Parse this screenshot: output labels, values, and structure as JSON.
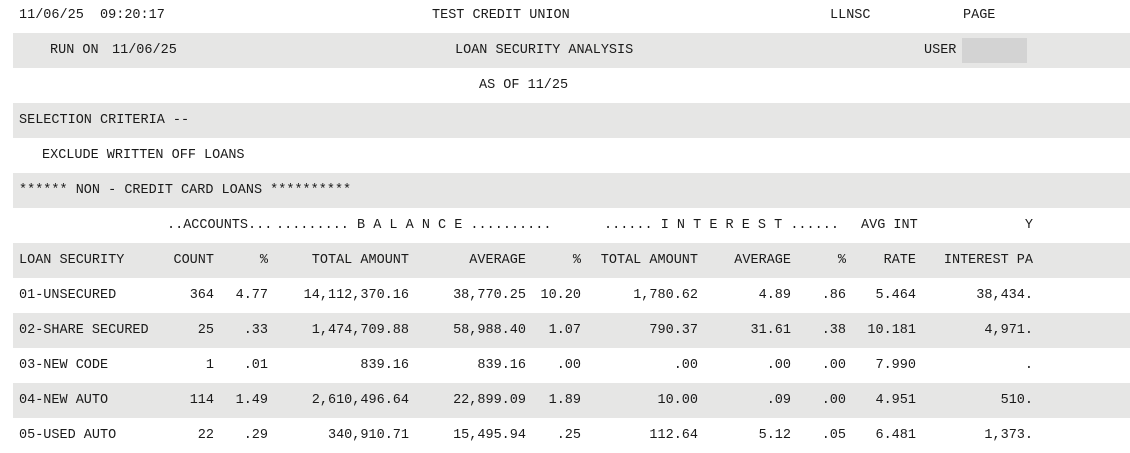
{
  "header": {
    "datetime": "11/06/25  09:20:17",
    "institution": "TEST CREDIT UNION",
    "report_code": "LLNSC",
    "page_label": "PAGE",
    "run_on_label": "RUN ON",
    "run_on_date": "11/06/25",
    "report_title": "LOAN SECURITY ANALYSIS",
    "user_label": "USER",
    "as_of": "AS OF 11/25"
  },
  "criteria": {
    "title": "SELECTION CRITERIA --",
    "items": [
      "EXCLUDE WRITTEN OFF LOANS"
    ]
  },
  "section_title": "****** NON - CREDIT CARD LOANS **********",
  "table": {
    "groups": {
      "accounts": "..ACCOUNTS...",
      "balance": "......... B A L A N C E ..........",
      "interest": "...... I N T E R E S T ......",
      "avg_int": "AVG INT",
      "y": "Y"
    },
    "columns": [
      "LOAN SECURITY",
      "COUNT",
      "%",
      "TOTAL AMOUNT",
      "AVERAGE",
      "%",
      "TOTAL AMOUNT",
      "AVERAGE",
      "%",
      "RATE",
      "INTEREST PA"
    ],
    "rows": [
      [
        "01-UNSECURED",
        "364",
        "4.77",
        "14,112,370.16",
        "38,770.25",
        "10.20",
        "1,780.62",
        "4.89",
        ".86",
        "5.464",
        "38,434."
      ],
      [
        "02-SHARE SECURED",
        "25",
        ".33",
        "1,474,709.88",
        "58,988.40",
        "1.07",
        "790.37",
        "31.61",
        ".38",
        "10.181",
        "4,971."
      ],
      [
        "03-NEW CODE",
        "1",
        ".01",
        "839.16",
        "839.16",
        ".00",
        ".00",
        ".00",
        ".00",
        "7.990",
        "."
      ],
      [
        "04-NEW AUTO",
        "114",
        "1.49",
        "2,610,496.64",
        "22,899.09",
        "1.89",
        "10.00",
        ".09",
        ".00",
        "4.951",
        "510."
      ],
      [
        "05-USED AUTO",
        "22",
        ".29",
        "340,910.71",
        "15,495.94",
        ".25",
        "112.64",
        "5.12",
        ".05",
        "6.481",
        "1,373."
      ]
    ]
  }
}
